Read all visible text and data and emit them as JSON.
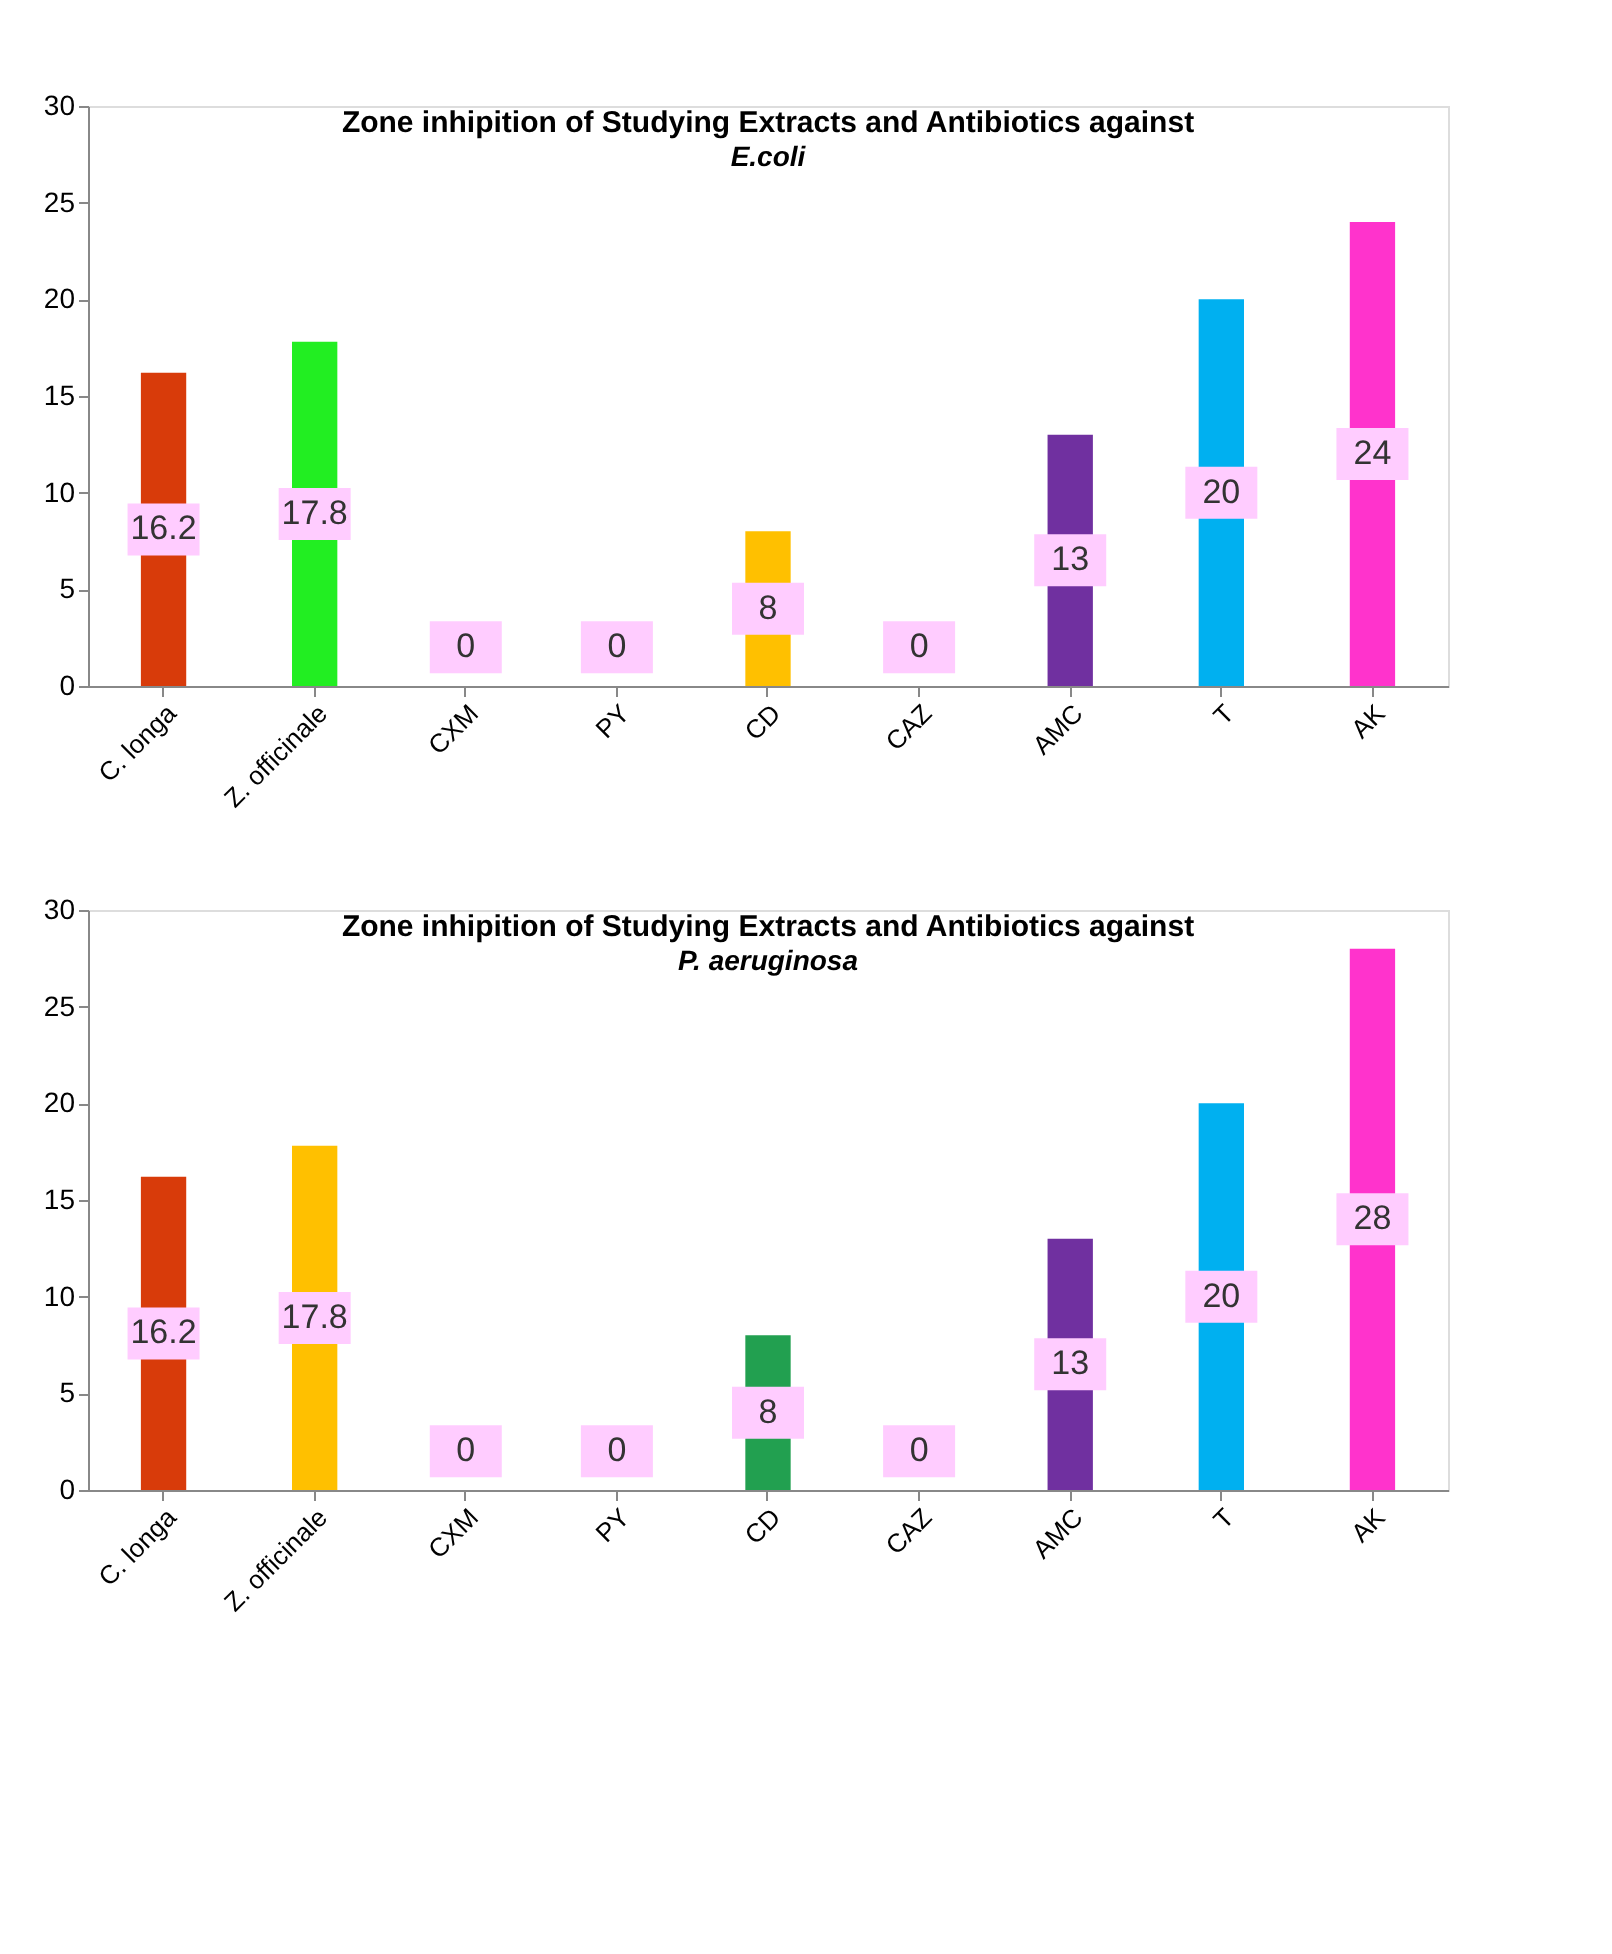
{
  "chart_data": [
    {
      "type": "bar",
      "title": "Zone inhipition of Studying Extracts and Antibiotics  against",
      "subtitle": "E.coli",
      "categories": [
        "C. longa",
        "Z. officinale",
        "CXM",
        "PY",
        "CD",
        "CAZ",
        "AMC",
        "T",
        "AK"
      ],
      "values": [
        16.2,
        17.8,
        0,
        0,
        8,
        0,
        13,
        20,
        24
      ],
      "colors": [
        "#d83b0a",
        "#22ee22",
        "#999999",
        "#999999",
        "#ffc000",
        "#999999",
        "#7030a0",
        "#00b0f0",
        "#ff33cc"
      ],
      "ylim": [
        0,
        30
      ],
      "yticks": [
        0,
        5,
        10,
        15,
        20,
        25,
        30
      ],
      "grid": false,
      "data_labels": true
    },
    {
      "type": "bar",
      "title": "Zone inhipition of Studying Extracts and Antibiotics  against",
      "subtitle": "P. aeruginosa",
      "categories": [
        "C. longa",
        "Z. officinale",
        "CXM",
        "PY",
        "CD",
        "CAZ",
        "AMC",
        "T",
        "AK"
      ],
      "values": [
        16.2,
        17.8,
        0,
        0,
        8,
        0,
        13,
        20,
        28
      ],
      "colors": [
        "#d83b0a",
        "#ffc000",
        "#999999",
        "#999999",
        "#22a050",
        "#999999",
        "#7030a0",
        "#00b0f0",
        "#ff33cc"
      ],
      "ylim": [
        0,
        30
      ],
      "yticks": [
        0,
        5,
        10,
        15,
        20,
        25,
        30
      ],
      "grid": false,
      "data_labels": true
    }
  ]
}
